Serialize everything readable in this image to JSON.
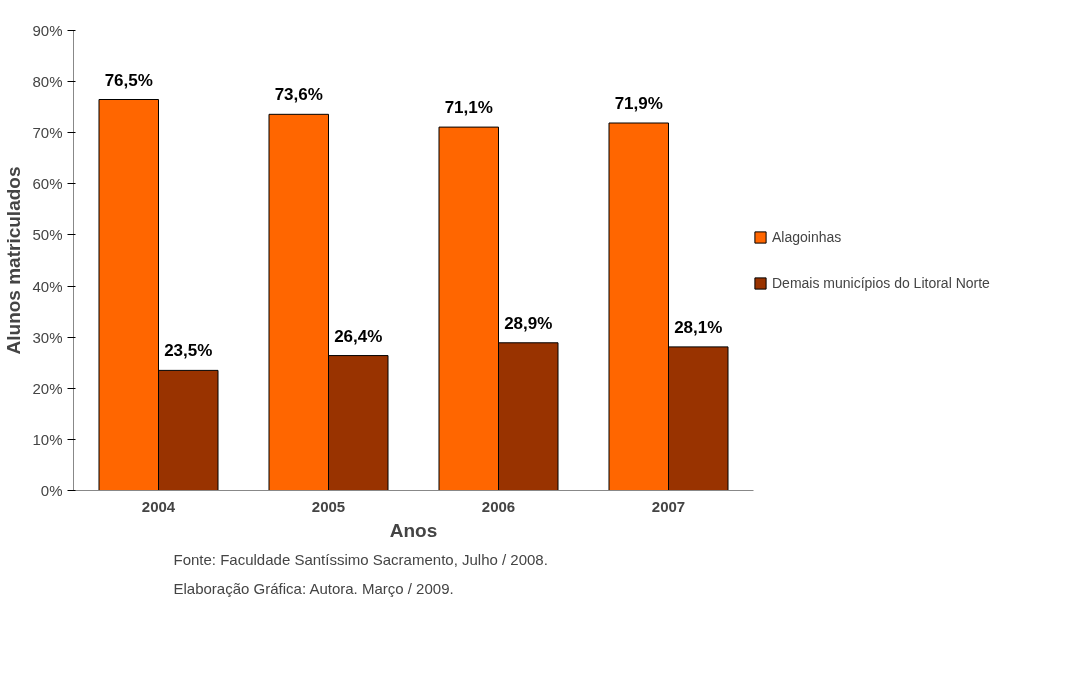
{
  "chart_data": {
    "type": "bar",
    "xlabel": "Anos",
    "ylabel": "Alunos matriculados",
    "categories": [
      "2004",
      "2005",
      "2006",
      "2007"
    ],
    "series": [
      {
        "name": "Alagoinhas",
        "color": "#ff6600",
        "values": [
          76.5,
          73.6,
          71.1,
          71.9
        ],
        "value_labels": [
          "76,5%",
          "73,6%",
          "71,1%",
          "71,9%"
        ]
      },
      {
        "name": "Demais municípios do Litoral Norte",
        "color": "#993300",
        "values": [
          23.5,
          26.4,
          28.9,
          28.1
        ],
        "value_labels": [
          "23,5%",
          "26,4%",
          "28,9%",
          "28,1%"
        ]
      }
    ],
    "ylim": [
      0,
      90
    ],
    "yticks": [
      {
        "value": 0,
        "label": "0%"
      },
      {
        "value": 10,
        "label": "10%"
      },
      {
        "value": 20,
        "label": "20%"
      },
      {
        "value": 30,
        "label": "30%"
      },
      {
        "value": 40,
        "label": "40%"
      },
      {
        "value": 50,
        "label": "50%"
      },
      {
        "value": 60,
        "label": "60%"
      },
      {
        "value": 70,
        "label": "70%"
      },
      {
        "value": 80,
        "label": "80%"
      },
      {
        "value": 90,
        "label": "90%"
      }
    ],
    "grid": false,
    "legend": "right",
    "annotations": [
      "Fonte: Faculdade Santíssimo Sacramento, Julho / 2008.",
      "Elaboração Gráfica: Autora. Março / 2009."
    ]
  }
}
